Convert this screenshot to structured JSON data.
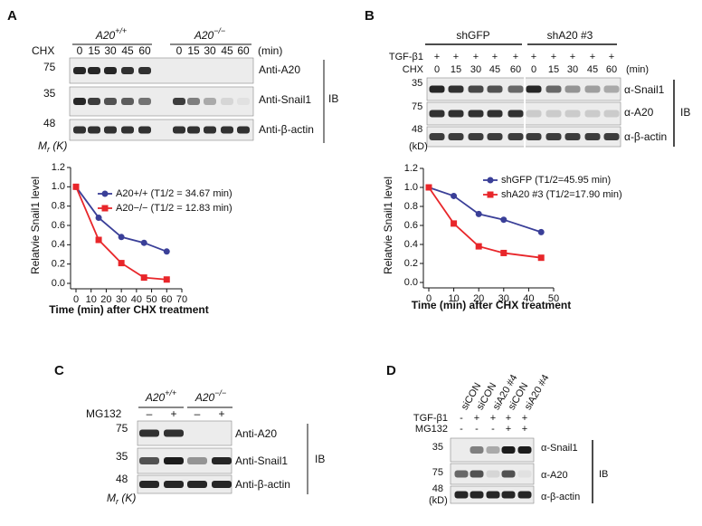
{
  "chart_data": [
    {
      "type": "line",
      "xlabel": "Time (min) after CHX treatment",
      "ylabel": "Relatvie Snail1 level",
      "x": [
        0,
        15,
        30,
        45,
        60
      ],
      "series": [
        {
          "name": "A20+/+ (T1/2 = 34.67 min)",
          "color": "#3a3f98",
          "marker": "circle",
          "values": [
            1.0,
            0.68,
            0.48,
            0.42,
            0.33
          ]
        },
        {
          "name": "A20−/− (T1/2 = 12.83 min)",
          "color": "#e8262a",
          "marker": "square",
          "values": [
            1.0,
            0.45,
            0.21,
            0.06,
            0.04
          ]
        }
      ],
      "xlim": [
        0,
        70
      ],
      "xticks": [
        0,
        10,
        20,
        30,
        40,
        50,
        60,
        70
      ],
      "ylim": [
        0,
        1.2
      ],
      "yticks": [
        {
          "value": 0,
          "label": "0.0"
        },
        0.2,
        0.4,
        0.6,
        0.8,
        {
          "value": 1,
          "label": "1.0"
        },
        1.2
      ]
    },
    {
      "type": "line",
      "xlabel": "Time (min) after CHX treatment",
      "ylabel": "Relatvie Snail1 level",
      "x": [
        0,
        10,
        20,
        30,
        45
      ],
      "series": [
        {
          "name": "shGFP (T1/2=45.95 min)",
          "color": "#3a3f98",
          "marker": "circle",
          "values": [
            1.0,
            0.91,
            0.72,
            0.66,
            0.53
          ]
        },
        {
          "name": "shA20 #3 (T1/2=17.90 min)",
          "color": "#e8262a",
          "marker": "square",
          "values": [
            1.0,
            0.62,
            0.38,
            0.31,
            0.26
          ]
        }
      ],
      "xlim": [
        0,
        50
      ],
      "xticks": [
        0,
        10,
        20,
        30,
        40,
        50
      ],
      "ylim": [
        0,
        1.2
      ],
      "yticks": [
        {
          "value": 0,
          "label": "0.0"
        },
        0.2,
        0.4,
        0.6,
        0.8,
        {
          "value": 1,
          "label": "1.0"
        },
        1.2
      ]
    }
  ],
  "panels": {
    "A": {
      "letter": "A",
      "groups": [
        {
          "base": "A20",
          "sup": "+/+"
        },
        {
          "base": "A20",
          "sup": "−/−"
        }
      ],
      "treatment": "CHX",
      "times": [
        0,
        15,
        30,
        45,
        60,
        0,
        15,
        30,
        45,
        60
      ],
      "unit": "(min)",
      "markers": [
        75,
        35,
        48
      ],
      "blots": [
        "Anti-A20",
        "Anti-Snail1",
        "Anti-β-actin"
      ],
      "method": "IB",
      "mass_label": {
        "base": "M",
        "sub": "r",
        "rest": " (K)"
      }
    },
    "B": {
      "letter": "B",
      "groups": [
        "shGFP",
        "shA20 #3"
      ],
      "rows": [
        {
          "label": "TGF-β1",
          "marks": [
            "+",
            "+",
            "+",
            "+",
            "+",
            "+",
            "+",
            "+",
            "+",
            "+"
          ]
        },
        {
          "label": "CHX",
          "marks": [
            0,
            15,
            30,
            45,
            60,
            0,
            15,
            30,
            45,
            60
          ]
        }
      ],
      "unit": "(min)",
      "markers": [
        35,
        75,
        48
      ],
      "marker_unit": "(kD)",
      "blots": [
        "α-Snail1",
        "α-A20",
        "α-β-actin"
      ],
      "method": "IB"
    },
    "C": {
      "letter": "C",
      "groups": [
        {
          "base": "A20",
          "sup": "+/+"
        },
        {
          "base": "A20",
          "sup": "−/−"
        }
      ],
      "treatment": "MG132",
      "marks": [
        "–",
        "+",
        "–",
        "+"
      ],
      "markers": [
        75,
        35,
        48
      ],
      "blots": [
        "Anti-A20",
        "Anti-Snail1",
        "Anti-β-actin"
      ],
      "method": "IB",
      "mass_label": {
        "base": "M",
        "sub": "r",
        "rest": " (K)"
      }
    },
    "D": {
      "letter": "D",
      "lanes": [
        "siCON",
        "siCON",
        "siA20 #4",
        "siCON",
        "siA20 #4"
      ],
      "rows": [
        {
          "label": "TGF-β1",
          "marks": [
            "-",
            "+",
            "+",
            "+",
            "+"
          ]
        },
        {
          "label": "MG132",
          "marks": [
            "-",
            "-",
            "-",
            "+",
            "+"
          ]
        }
      ],
      "markers": [
        35,
        75,
        48
      ],
      "marker_unit": "(kD)",
      "blots": [
        "α-Snail1",
        "α-A20",
        "α-β-actin"
      ],
      "method": "IB"
    }
  }
}
